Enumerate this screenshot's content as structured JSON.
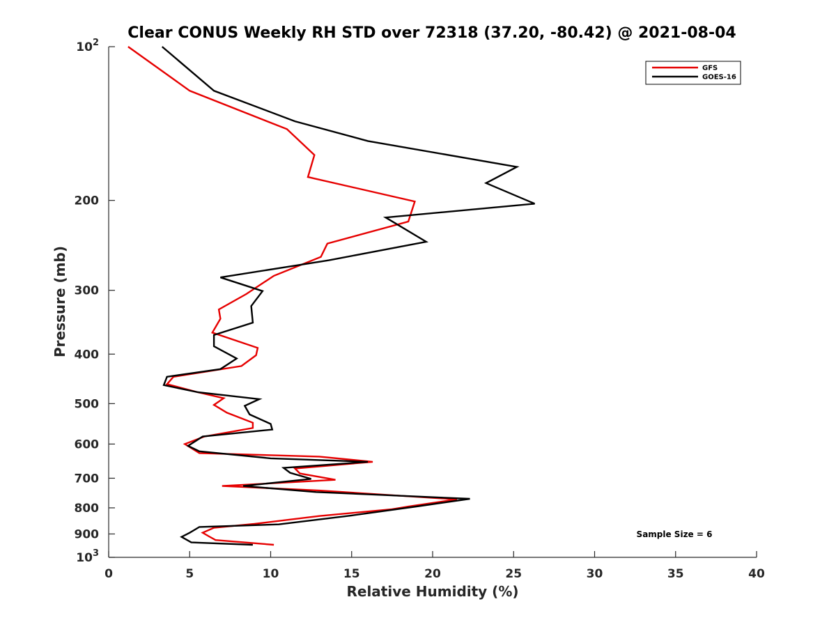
{
  "chart_data": {
    "type": "line",
    "title": "Clear CONUS Weekly RH STD over 72318 (37.20, -80.42) @ 2021-08-04",
    "xlabel": "Relative Humidity (%)",
    "ylabel": "Pressure (mb)",
    "xlim": [
      0,
      40
    ],
    "ylim": [
      100,
      1000
    ],
    "y_scale": "log",
    "y_reversed": true,
    "grid": false,
    "legend_position": "top-right",
    "x_ticks": [
      "0",
      "5",
      "10",
      "15",
      "20",
      "25",
      "30",
      "35",
      "40"
    ],
    "y_ticks": [
      {
        "value": 100,
        "label": "10",
        "sup": "2"
      },
      {
        "value": 200,
        "label": "200",
        "sup": ""
      },
      {
        "value": 300,
        "label": "300",
        "sup": ""
      },
      {
        "value": 400,
        "label": "400",
        "sup": ""
      },
      {
        "value": 500,
        "label": "500",
        "sup": ""
      },
      {
        "value": 600,
        "label": "600",
        "sup": ""
      },
      {
        "value": 700,
        "label": "700",
        "sup": ""
      },
      {
        "value": 800,
        "label": "800",
        "sup": ""
      },
      {
        "value": 900,
        "label": "900",
        "sup": ""
      },
      {
        "value": 1000,
        "label": "10",
        "sup": "3"
      }
    ],
    "annotation": "Sample Size = 6",
    "series": [
      {
        "name": "GFS",
        "color": "#e60000",
        "points": [
          [
            1.2,
            100
          ],
          [
            5.0,
            122
          ],
          [
            11.0,
            145
          ],
          [
            12.7,
            163
          ],
          [
            12.3,
            180
          ],
          [
            18.9,
            201
          ],
          [
            18.5,
            220
          ],
          [
            13.5,
            243
          ],
          [
            13.1,
            258
          ],
          [
            10.2,
            281
          ],
          [
            8.5,
            305
          ],
          [
            6.8,
            327
          ],
          [
            6.9,
            341
          ],
          [
            6.4,
            363
          ],
          [
            9.2,
            389
          ],
          [
            9.1,
            402
          ],
          [
            8.2,
            422
          ],
          [
            4.0,
            443
          ],
          [
            3.6,
            458
          ],
          [
            5.5,
            475
          ],
          [
            7.1,
            488
          ],
          [
            6.5,
            503
          ],
          [
            7.3,
            521
          ],
          [
            8.9,
            545
          ],
          [
            8.9,
            558
          ],
          [
            5.9,
            580
          ],
          [
            4.7,
            600
          ],
          [
            5.6,
            625
          ],
          [
            13.0,
            635
          ],
          [
            16.3,
            650
          ],
          [
            11.5,
            670
          ],
          [
            11.8,
            685
          ],
          [
            14.0,
            705
          ],
          [
            7.0,
            725
          ],
          [
            13.0,
            740
          ],
          [
            21.5,
            770
          ],
          [
            18.5,
            795
          ],
          [
            17.5,
            805
          ],
          [
            13.0,
            830
          ],
          [
            9.0,
            860
          ],
          [
            6.5,
            875
          ],
          [
            5.8,
            895
          ],
          [
            6.2,
            910
          ],
          [
            6.6,
            925
          ],
          [
            10.2,
            945
          ]
        ]
      },
      {
        "name": "GOES-16",
        "color": "#000000",
        "points": [
          [
            3.3,
            100
          ],
          [
            6.5,
            122
          ],
          [
            11.5,
            140
          ],
          [
            16.0,
            153
          ],
          [
            25.2,
            172
          ],
          [
            23.3,
            185
          ],
          [
            26.3,
            203
          ],
          [
            17.1,
            216
          ],
          [
            19.6,
            241
          ],
          [
            13.6,
            262
          ],
          [
            6.9,
            283
          ],
          [
            9.5,
            301
          ],
          [
            8.8,
            322
          ],
          [
            8.9,
            347
          ],
          [
            6.5,
            367
          ],
          [
            6.5,
            386
          ],
          [
            7.9,
            408
          ],
          [
            6.9,
            428
          ],
          [
            3.6,
            443
          ],
          [
            3.4,
            460
          ],
          [
            5.5,
            475
          ],
          [
            9.3,
            490
          ],
          [
            8.4,
            505
          ],
          [
            8.7,
            525
          ],
          [
            10.0,
            548
          ],
          [
            10.1,
            562
          ],
          [
            5.8,
            580
          ],
          [
            4.9,
            605
          ],
          [
            5.6,
            620
          ],
          [
            10.0,
            640
          ],
          [
            16.0,
            650
          ],
          [
            10.8,
            668
          ],
          [
            11.2,
            683
          ],
          [
            12.5,
            702
          ],
          [
            8.3,
            725
          ],
          [
            12.8,
            745
          ],
          [
            22.3,
            768
          ],
          [
            19.0,
            795
          ],
          [
            15.0,
            828
          ],
          [
            10.5,
            862
          ],
          [
            5.6,
            872
          ],
          [
            5.0,
            895
          ],
          [
            4.5,
            912
          ],
          [
            5.1,
            935
          ],
          [
            8.9,
            945
          ]
        ]
      }
    ]
  }
}
